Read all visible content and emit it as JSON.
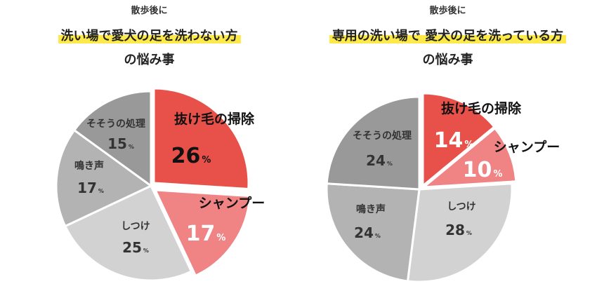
{
  "chart_data": [
    {
      "type": "pie",
      "kicker": "散歩後に",
      "title_line1": "洗い場で愛犬の足を洗わない方",
      "title_line2": "の悩み事",
      "unit": "%",
      "slices": [
        {
          "label": "抜け毛の掃除",
          "value": 26,
          "color": "#e8504a"
        },
        {
          "label": "シャンプー",
          "value": 17,
          "color": "#f08383"
        },
        {
          "label": "しつけ",
          "value": 25,
          "color": "#d2d2d2"
        },
        {
          "label": "鳴き声",
          "value": 17,
          "color": "#b3b3b3"
        },
        {
          "label": "そそうの処理",
          "value": 15,
          "color": "#999999"
        }
      ]
    },
    {
      "type": "pie",
      "kicker": "散歩後に",
      "title_line1": "専用の洗い場で 愛犬の足を洗っている方",
      "title_line2": "の悩み事",
      "unit": "%",
      "slices": [
        {
          "label": "抜け毛の掃除",
          "value": 14,
          "color": "#e8504a"
        },
        {
          "label": "シャンプー",
          "value": 10,
          "color": "#f08383"
        },
        {
          "label": "しつけ",
          "value": 28,
          "color": "#d2d2d2"
        },
        {
          "label": "鳴き声",
          "value": 24,
          "color": "#b3b3b3"
        },
        {
          "label": "そそうの処理",
          "value": 24,
          "color": "#999999"
        }
      ]
    }
  ]
}
